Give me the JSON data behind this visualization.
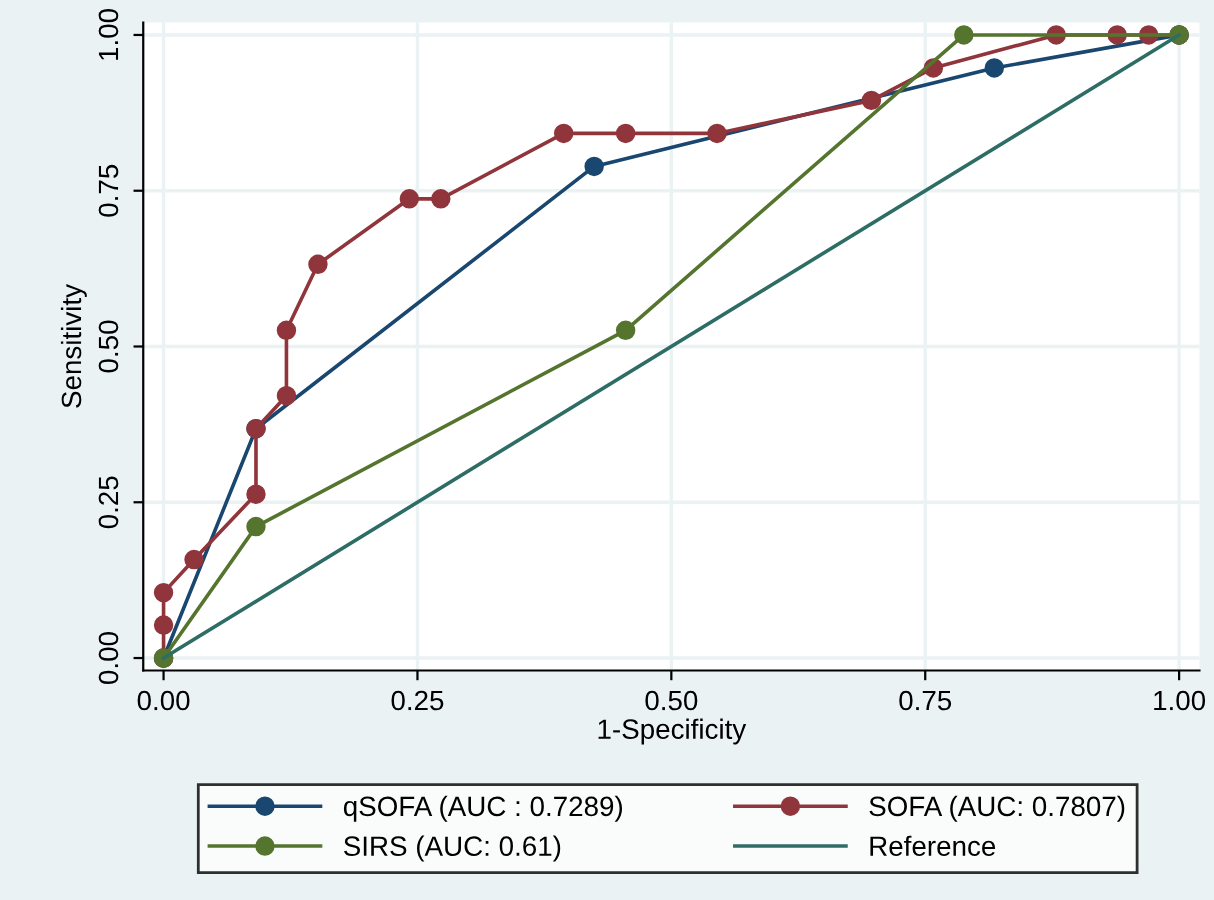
{
  "chart_data": {
    "type": "line",
    "xlabel": "1-Specificity",
    "ylabel": "Sensitivity",
    "xlim": [
      -0.02,
      1.02
    ],
    "ylim": [
      -0.02,
      1.02
    ],
    "xticks": [
      {
        "value": 0,
        "label": "0.00"
      },
      {
        "value": 0.25,
        "label": "0.25"
      },
      {
        "value": 0.5,
        "label": "0.50"
      },
      {
        "value": 0.75,
        "label": "0.75"
      },
      {
        "value": 1,
        "label": "1.00"
      }
    ],
    "yticks": [
      {
        "value": 0,
        "label": "0.00"
      },
      {
        "value": 0.25,
        "label": "0.25"
      },
      {
        "value": 0.5,
        "label": "0.50"
      },
      {
        "value": 0.75,
        "label": "0.75"
      },
      {
        "value": 1,
        "label": "1.00"
      }
    ],
    "grid": true,
    "legend": "bottom",
    "marker": "circle",
    "series": [
      {
        "name": "qSOFA (AUC : 0.7289)",
        "color": "#1a476f",
        "x": [
          0,
          0.091,
          0.424,
          0.818,
          1
        ],
        "values": [
          0,
          0.368,
          0.789,
          0.947,
          1
        ]
      },
      {
        "name": "SOFA (AUC: 0.7807)",
        "color": "#90353b",
        "x": [
          0,
          0,
          0,
          0.03,
          0.091,
          0.091,
          0.121,
          0.121,
          0.152,
          0.242,
          0.273,
          0.394,
          0.455,
          0.545,
          0.697,
          0.758,
          0.879,
          0.939,
          0.97,
          1
        ],
        "values": [
          0,
          0.053,
          0.105,
          0.158,
          0.263,
          0.368,
          0.421,
          0.526,
          0.632,
          0.737,
          0.737,
          0.842,
          0.842,
          0.842,
          0.895,
          0.947,
          1,
          1,
          1,
          1
        ]
      },
      {
        "name": "SIRS (AUC: 0.61)",
        "color": "#55752f",
        "x": [
          0,
          0.091,
          0.455,
          0.788,
          1
        ],
        "values": [
          0,
          0.211,
          0.526,
          1,
          1
        ]
      },
      {
        "name": "Reference",
        "color": "#2d6d66",
        "marker": "none",
        "x": [
          0,
          1
        ],
        "values": [
          0,
          1
        ]
      }
    ]
  }
}
